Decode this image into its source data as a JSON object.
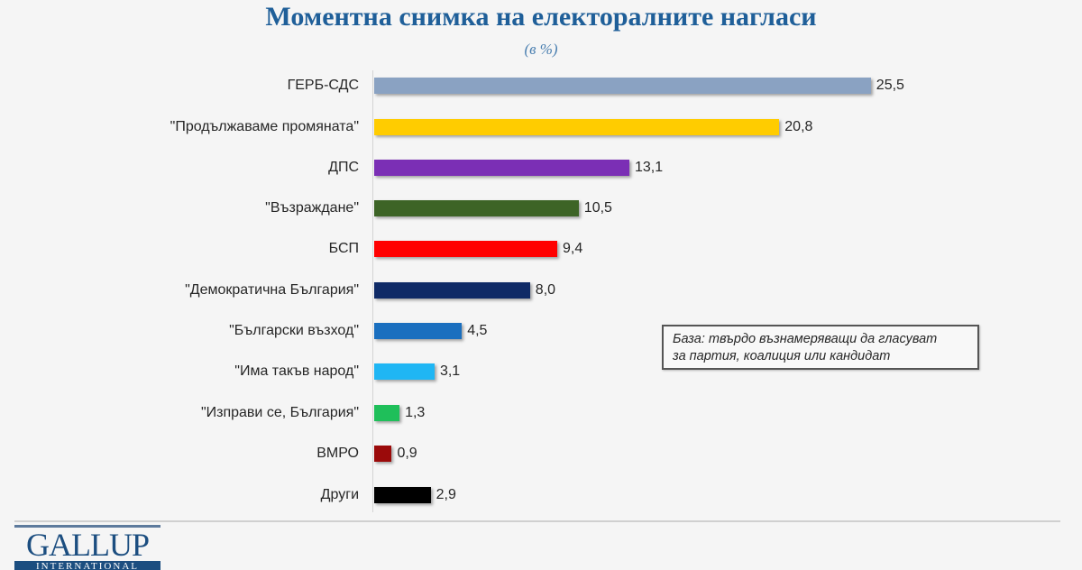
{
  "header": {
    "title": "Моментна снимка на електоралните нагласи",
    "subtitle": "(в %)"
  },
  "note": {
    "line1": "База: твърдо възнамеряващи да гласуват",
    "line2": "за партия, коалиция или кандидат"
  },
  "logo": {
    "name": "GALLUP",
    "band": "INTERNATIONAL"
  },
  "bars": [
    {
      "label": "ГЕРБ-СДС",
      "value": 25.5,
      "display": "25,5",
      "color": "#8aa2c2"
    },
    {
      "label": "\"Продължаваме промяната\"",
      "value": 20.8,
      "display": "20,8",
      "color": "#ffcc00"
    },
    {
      "label": "ДПС",
      "value": 13.1,
      "display": "13,1",
      "color": "#7b2fb5"
    },
    {
      "label": "\"Възраждане\"",
      "value": 10.5,
      "display": "10,5",
      "color": "#3d6426"
    },
    {
      "label": "БСП",
      "value": 9.4,
      "display": "9,4",
      "color": "#ff0000"
    },
    {
      "label": "\"Демократична България\"",
      "value": 8.0,
      "display": "8,0",
      "color": "#0f2a66"
    },
    {
      "label": "\"Български възход\"",
      "value": 4.5,
      "display": "4,5",
      "color": "#1a6fbf"
    },
    {
      "label": "\"Има такъв народ\"",
      "value": 3.1,
      "display": "3,1",
      "color": "#1fb6f4"
    },
    {
      "label": "\"Изправи се, България\"",
      "value": 1.3,
      "display": "1,3",
      "color": "#1fbf5a"
    },
    {
      "label": "ВМРО",
      "value": 0.9,
      "display": "0,9",
      "color": "#9b0a0a"
    },
    {
      "label": "Други",
      "value": 2.9,
      "display": "2,9",
      "color": "#000000"
    }
  ],
  "chart_data": {
    "type": "bar",
    "orientation": "horizontal",
    "title": "Моментна снимка на електоралните нагласи",
    "subtitle": "(в %)",
    "xlabel": "",
    "ylabel": "",
    "categories": [
      "ГЕРБ-СДС",
      "\"Продължаваме промяната\"",
      "ДПС",
      "\"Възраждане\"",
      "БСП",
      "\"Демократична България\"",
      "\"Български възход\"",
      "\"Има такъв народ\"",
      "\"Изправи се, България\"",
      "ВМРО",
      "Други"
    ],
    "values": [
      25.5,
      20.8,
      13.1,
      10.5,
      9.4,
      8.0,
      4.5,
      3.1,
      1.3,
      0.9,
      2.9
    ],
    "colors": [
      "#8aa2c2",
      "#ffcc00",
      "#7b2fb5",
      "#3d6426",
      "#ff0000",
      "#0f2a66",
      "#1a6fbf",
      "#1fb6f4",
      "#1fbf5a",
      "#9b0a0a",
      "#000000"
    ],
    "data_labels": true,
    "grid": false,
    "legend": "none",
    "annotation": "База: твърдо възнамеряващи да гласуват за партия, коалиция или кандидат",
    "source": "GALLUP INTERNATIONAL"
  }
}
